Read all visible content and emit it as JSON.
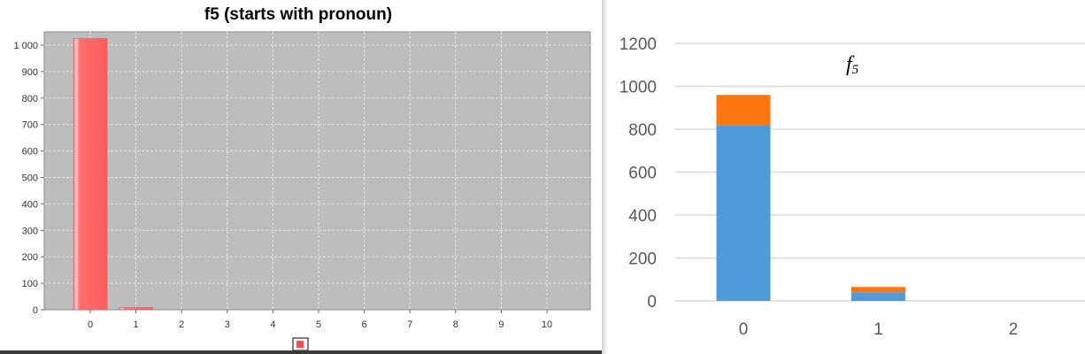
{
  "chart_data": [
    {
      "type": "bar",
      "title": "f5 (starts with pronoun)",
      "categories": [
        "0",
        "1",
        "2",
        "3",
        "4",
        "5",
        "6",
        "7",
        "8",
        "9",
        "10"
      ],
      "values": [
        1025,
        8,
        0,
        0,
        0,
        0,
        0,
        0,
        0,
        0,
        0
      ],
      "ylim": [
        0,
        1050
      ],
      "yticks": [
        "0",
        "100",
        "200",
        "300",
        "400",
        "500",
        "600",
        "700",
        "800",
        "900",
        "1 000"
      ],
      "ytick_values": [
        0,
        100,
        200,
        300,
        400,
        500,
        600,
        700,
        800,
        900,
        1000
      ],
      "grid": true,
      "legend": "bottom-center",
      "colors": {
        "bar": "#ff6666",
        "plot_bg": "#bdbdbd",
        "grid": "#e6e6e6"
      }
    },
    {
      "type": "bar",
      "stacked": true,
      "title_main": "f",
      "title_sub": "5",
      "categories": [
        "0",
        "1",
        "2"
      ],
      "series": [
        {
          "values": [
            820,
            40,
            0
          ],
          "color": "#4f9ad8"
        },
        {
          "values": [
            140,
            25,
            0
          ],
          "color": "#ff7510"
        }
      ],
      "ylim": [
        0,
        1200
      ],
      "yticks": [
        "0",
        "200",
        "400",
        "600",
        "800",
        "1000",
        "1200"
      ],
      "ytick_values": [
        0,
        200,
        400,
        600,
        800,
        1000,
        1200
      ],
      "grid": true,
      "colors": {
        "grid": "#d9d9d9"
      }
    }
  ]
}
